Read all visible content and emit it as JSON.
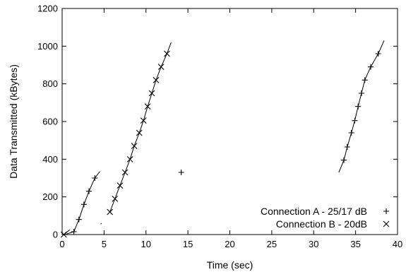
{
  "chart_data": {
    "type": "scatter",
    "title": "",
    "xlabel": "Time (sec)",
    "ylabel": "Data Transmitted (kBytes)",
    "xlim": [
      0,
      40
    ],
    "ylim": [
      0,
      1200
    ],
    "xticks": [
      0,
      5,
      10,
      15,
      20,
      25,
      30,
      35,
      40
    ],
    "yticks": [
      0,
      200,
      400,
      600,
      800,
      1000,
      1200
    ],
    "grid": false,
    "legend_position": "bottom-right",
    "series": [
      {
        "name": "Connection A - 25/17 dB",
        "marker": "plus",
        "color": "#000000",
        "points": [
          [
            1.4,
            15
          ],
          [
            2.0,
            80
          ],
          [
            2.6,
            160
          ],
          [
            3.2,
            230
          ],
          [
            3.9,
            300
          ],
          [
            14.2,
            330
          ],
          [
            33.6,
            395
          ],
          [
            34.0,
            465
          ],
          [
            34.5,
            540
          ],
          [
            34.9,
            605
          ],
          [
            35.3,
            680
          ],
          [
            35.7,
            750
          ],
          [
            36.1,
            820
          ],
          [
            36.8,
            890
          ],
          [
            37.7,
            960
          ]
        ],
        "segments": [
          [
            [
              0.3,
              0
            ],
            [
              1.4,
              15
            ],
            [
              2.0,
              80
            ],
            [
              2.6,
              160
            ],
            [
              3.2,
              230
            ],
            [
              3.9,
              300
            ],
            [
              4.5,
              335
            ]
          ],
          [
            [
              33.0,
              330
            ],
            [
              33.6,
              395
            ],
            [
              34.0,
              465
            ],
            [
              34.5,
              540
            ],
            [
              34.9,
              605
            ],
            [
              35.3,
              680
            ],
            [
              35.7,
              750
            ],
            [
              36.1,
              820
            ],
            [
              36.8,
              890
            ],
            [
              37.7,
              960
            ],
            [
              38.4,
              1030
            ]
          ]
        ]
      },
      {
        "name": "Connection B - 20dB",
        "marker": "cross",
        "color": "#000000",
        "points": [
          [
            0.2,
            0
          ],
          [
            5.7,
            120
          ],
          [
            6.3,
            190
          ],
          [
            6.9,
            260
          ],
          [
            7.5,
            330
          ],
          [
            8.1,
            400
          ],
          [
            8.6,
            470
          ],
          [
            9.2,
            540
          ],
          [
            9.7,
            605
          ],
          [
            10.2,
            680
          ],
          [
            10.7,
            750
          ],
          [
            11.2,
            820
          ],
          [
            11.8,
            890
          ],
          [
            12.5,
            960
          ]
        ],
        "segments": [
          [
            [
              0.0,
              0
            ],
            [
              0.2,
              0
            ],
            [
              0.9,
              25
            ]
          ],
          [
            [
              4.6,
              55
            ],
            [
              4.7,
              60
            ]
          ],
          [
            [
              5.7,
              120
            ],
            [
              6.3,
              190
            ],
            [
              6.9,
              260
            ],
            [
              7.5,
              330
            ],
            [
              8.1,
              400
            ],
            [
              8.6,
              470
            ],
            [
              9.2,
              540
            ],
            [
              9.7,
              605
            ],
            [
              10.2,
              680
            ],
            [
              10.7,
              750
            ],
            [
              11.2,
              820
            ],
            [
              11.8,
              890
            ],
            [
              12.5,
              960
            ],
            [
              13.0,
              1020
            ]
          ]
        ]
      }
    ]
  }
}
